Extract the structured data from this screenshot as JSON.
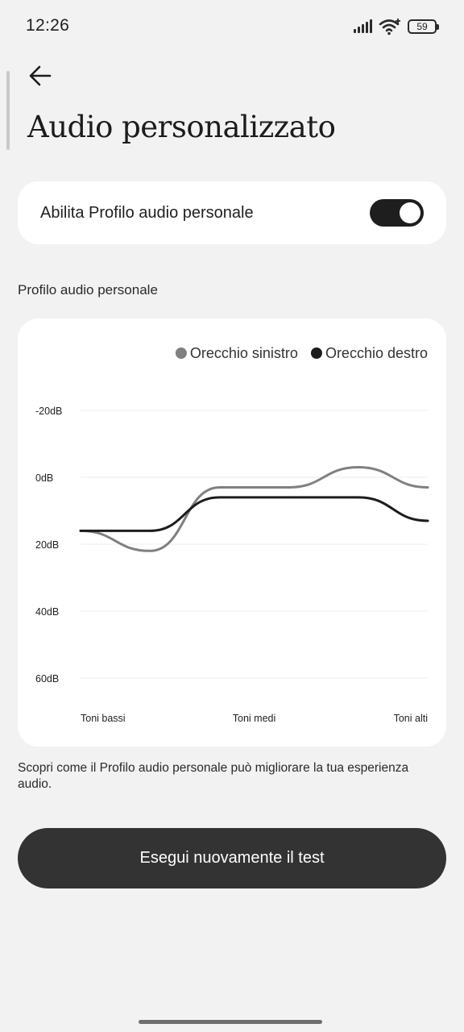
{
  "status_bar": {
    "time": "12:26",
    "battery": "59"
  },
  "header": {
    "title": "Audio personalizzato"
  },
  "toggle": {
    "label": "Abilita Profilo audio personale",
    "enabled": true
  },
  "section": {
    "label": "Profilo audio personale"
  },
  "chart_data": {
    "type": "line",
    "legend": {
      "placement": "top-right"
    },
    "series": [
      {
        "name": "Orecchio sinistro",
        "color": "#808080",
        "x": [
          0,
          0.2,
          0.4,
          0.6,
          0.8,
          1.0
        ],
        "values": [
          16,
          22,
          3,
          3,
          -3,
          3
        ]
      },
      {
        "name": "Orecchio destro",
        "color": "#1c1c1c",
        "x": [
          0,
          0.2,
          0.4,
          0.6,
          0.8,
          1.0
        ],
        "values": [
          16,
          16,
          6,
          6,
          6,
          13
        ]
      }
    ],
    "y_tick_labels": [
      "-20dB",
      "0dB",
      "20dB",
      "40dB",
      "60dB"
    ],
    "y_ticks": [
      -20,
      0,
      20,
      40,
      60
    ],
    "ylim": [
      -20,
      60
    ],
    "y_inverted": true,
    "x_tick_labels": [
      "Toni bassi",
      "Toni medi",
      "Toni alti"
    ],
    "grid": true
  },
  "info": {
    "text": "Scopri come il Profilo audio personale può migliorare la tua esperienza audio."
  },
  "actions": {
    "retest_label": "Esegui nuovamente il test"
  },
  "colors": {
    "accent": "#1e1e1e",
    "background": "#f2f2f2",
    "card": "#ffffff"
  }
}
